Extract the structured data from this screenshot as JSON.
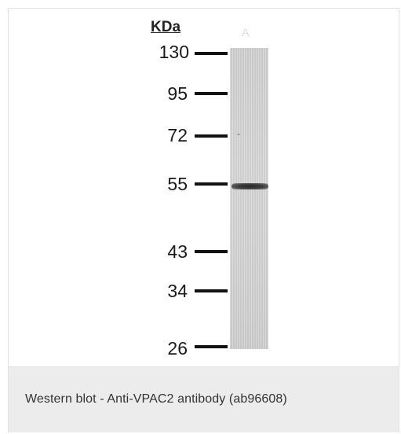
{
  "figure": {
    "unit_label": "KDa",
    "lane_label": "A",
    "markers": [
      {
        "label": "130"
      },
      {
        "label": "95"
      },
      {
        "label": "72"
      },
      {
        "label": "55"
      },
      {
        "label": "43"
      },
      {
        "label": "34"
      },
      {
        "label": "26"
      }
    ]
  },
  "caption": {
    "text": "Western blot - Anti-VPAC2 antibody (ab96608)"
  }
}
